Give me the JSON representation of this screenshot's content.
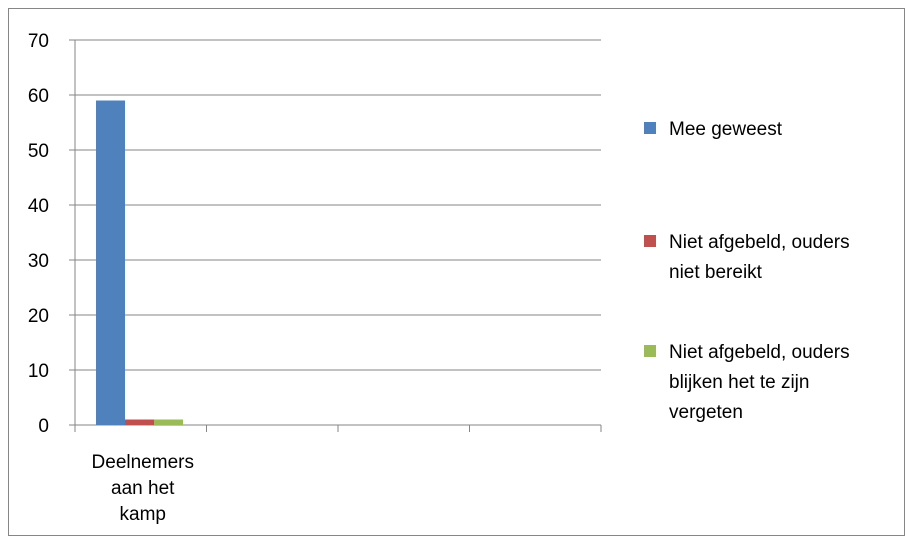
{
  "chart_data": {
    "type": "bar",
    "categories": [
      "Deelnemers aan het kamp",
      "",
      "",
      ""
    ],
    "category_label_lines": [
      [
        "Deelnemers",
        "aan het",
        "kamp"
      ],
      [],
      [],
      []
    ],
    "series": [
      {
        "name": "Mee geweest",
        "values": [
          59,
          null,
          null,
          null
        ],
        "color": "#4F81BD",
        "legend_lines": [
          "Mee geweest"
        ]
      },
      {
        "name": "Niet afgebeld, ouders niet bereikt",
        "values": [
          1,
          null,
          null,
          null
        ],
        "color": "#C0504D",
        "legend_lines": [
          "Niet afgebeld, ouders",
          "niet bereikt"
        ]
      },
      {
        "name": "Niet afgebeld, ouders blijken het te zijn vergeten",
        "values": [
          1,
          null,
          null,
          null
        ],
        "color": "#9BBB59",
        "legend_lines": [
          "Niet afgebeld, ouders",
          "blijken het te zijn",
          "vergeten"
        ]
      }
    ],
    "ylim": [
      0,
      70
    ],
    "yticks": [
      0,
      10,
      20,
      30,
      40,
      50,
      60,
      70
    ],
    "grid": true,
    "legend": "right",
    "title": "",
    "xlabel": "",
    "ylabel": ""
  }
}
